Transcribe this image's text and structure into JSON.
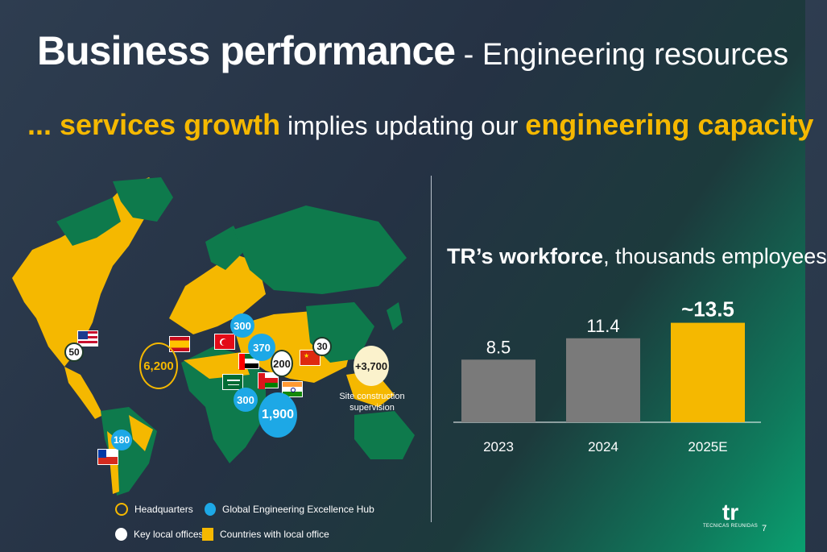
{
  "header": {
    "title_bold": "Business performance",
    "title_rest": " - Engineering resources",
    "subtitle_parts": [
      "... services growth",
      " implies updating our ",
      "engineering capacity"
    ]
  },
  "map": {
    "bubbles": [
      {
        "value": "50",
        "kind": "key-local-office"
      },
      {
        "value": "6,200",
        "kind": "headquarters"
      },
      {
        "value": "300",
        "kind": "engineering-hub"
      },
      {
        "value": "370",
        "kind": "engineering-hub"
      },
      {
        "value": "200",
        "kind": "key-local-office"
      },
      {
        "value": "30",
        "kind": "key-local-office"
      },
      {
        "value": "300",
        "kind": "engineering-hub"
      },
      {
        "value": "1,900",
        "kind": "engineering-hub"
      },
      {
        "value": "180",
        "kind": "engineering-hub"
      },
      {
        "value": "+3,700",
        "kind": "site-construction"
      }
    ],
    "site_label": "Site construction supervision"
  },
  "legend": {
    "headquarters": "Headquarters",
    "hub": "Global Engineering Excellence Hub",
    "key_offices": "Key local offices",
    "countries": "Countries with local office"
  },
  "colors": {
    "accent": "#f5b800",
    "bar_gray": "#7a7a7a",
    "hub_blue": "#1da8e6",
    "land_green": "#0e7a4c"
  },
  "chart_data": {
    "type": "bar",
    "title_bold": "TR’s workforce",
    "title_rest": ", thousands employees",
    "categories": [
      "2023",
      "2024",
      "2025E"
    ],
    "values": [
      8.5,
      11.4,
      13.5
    ],
    "value_labels": [
      "8.5",
      "11.4",
      "~13.5"
    ],
    "ylim": [
      0,
      14
    ]
  },
  "footer": {
    "logo_mark": "tr",
    "logo_text": "TECNICAS REUNIDAS",
    "page_number": "7"
  }
}
